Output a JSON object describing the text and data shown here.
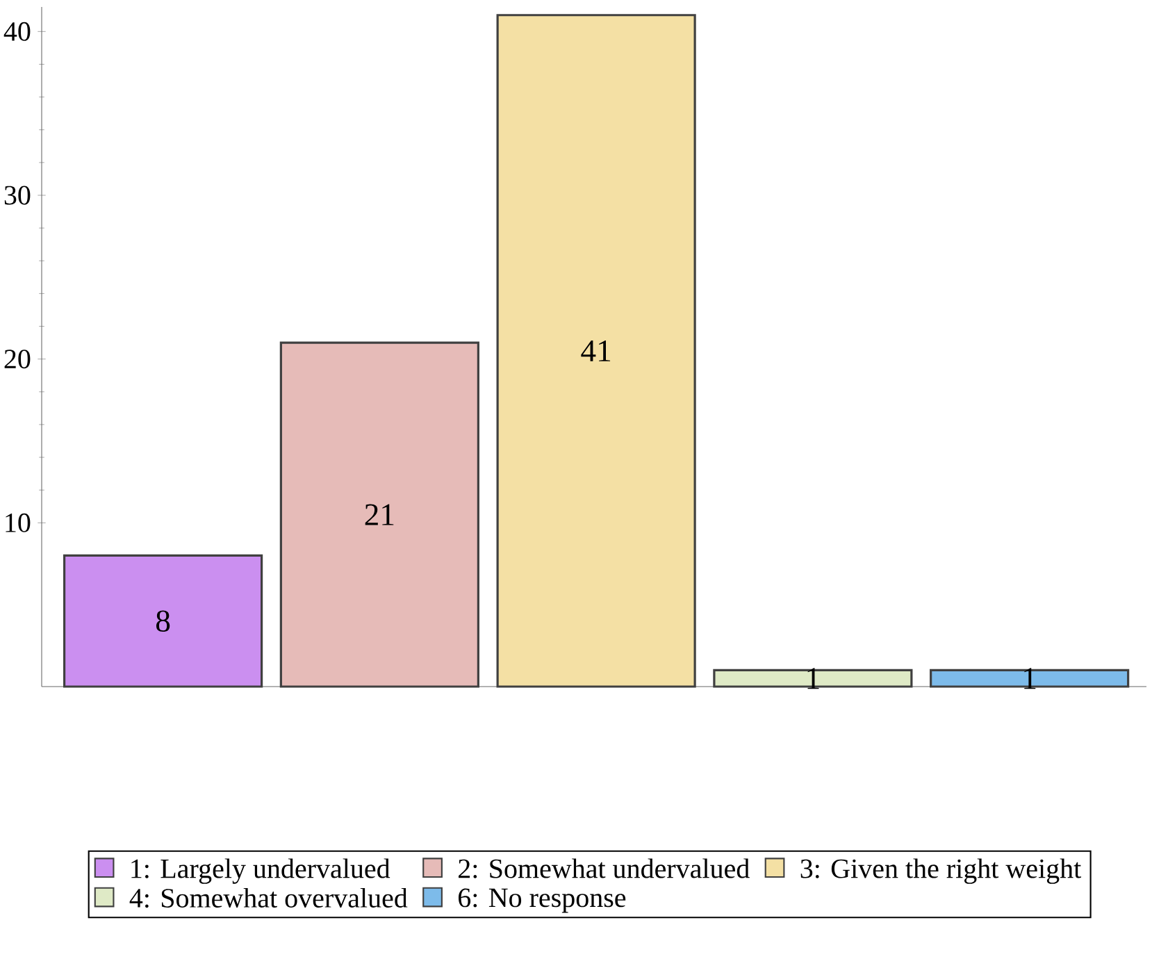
{
  "chart_data": {
    "type": "bar",
    "categories": [
      null,
      null,
      null,
      null,
      null
    ],
    "series": [
      {
        "name": "1: Largely undervalued",
        "color": "#cb8ff0",
        "values": [
          8,
          null,
          null,
          null,
          null
        ]
      },
      {
        "name": "2: Somewhat undervalued",
        "color": "#e6bbb8",
        "values": [
          null,
          21,
          null,
          null,
          null
        ]
      },
      {
        "name": "3: Given the right weight",
        "color": "#f4e0a4",
        "values": [
          null,
          null,
          41,
          null,
          null
        ]
      },
      {
        "name": "4: Somewhat overvalued",
        "color": "#dfeac6",
        "values": [
          null,
          null,
          null,
          1,
          null
        ]
      },
      {
        "name": "6: No response",
        "color": "#7dbbea",
        "values": [
          null,
          null,
          null,
          null,
          1
        ]
      }
    ],
    "ylim": [
      0,
      41.5
    ],
    "yticks": [
      10,
      20,
      30,
      40
    ],
    "data_labels": true,
    "legend": "bottom",
    "grid": false
  }
}
